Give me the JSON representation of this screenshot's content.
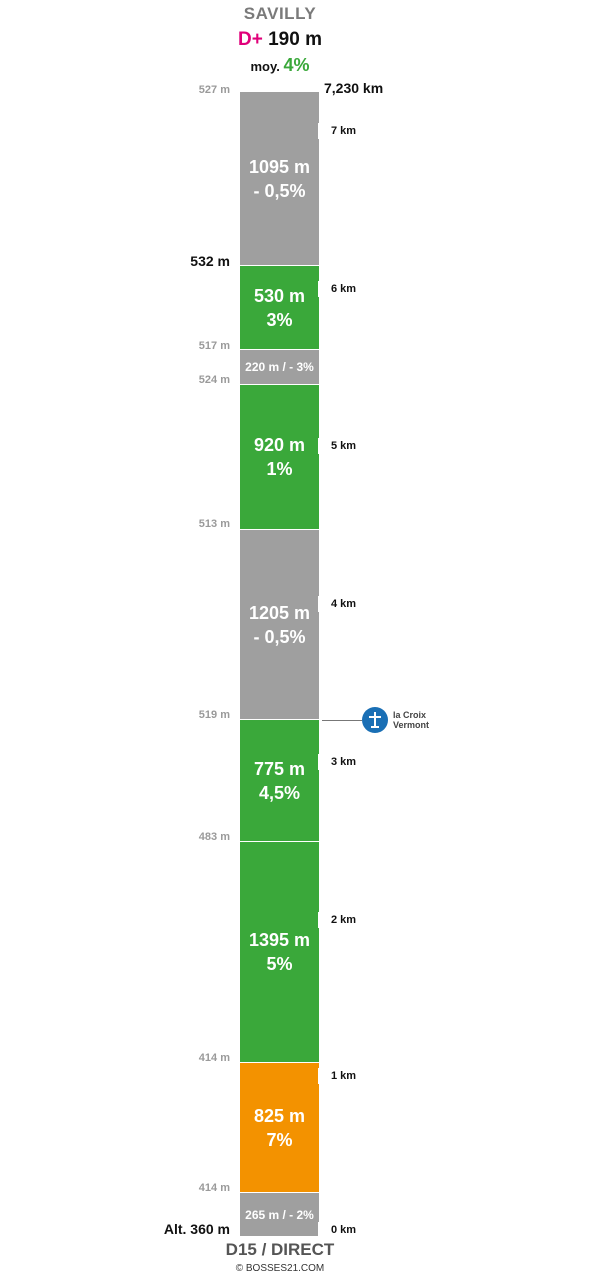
{
  "header": {
    "title": "SAVILLY",
    "dplus_label": "D+",
    "dplus_value": "190 m",
    "moy_label": "moy.",
    "moy_value": "4%"
  },
  "total_distance": "7,230 km",
  "segments": [
    {
      "length": "1095 m",
      "grade": "- 0,5%",
      "color": "#9f9f9f"
    },
    {
      "length": "530 m",
      "grade": "3%",
      "color": "#3aa83a"
    },
    {
      "length": "220 m / - 3%",
      "grade": "",
      "color": "#9f9f9f"
    },
    {
      "length": "920 m",
      "grade": "1%",
      "color": "#3aa83a"
    },
    {
      "length": "1205 m",
      "grade": "- 0,5%",
      "color": "#9f9f9f"
    },
    {
      "length": "775 m",
      "grade": "4,5%",
      "color": "#3aa83a"
    },
    {
      "length": "1395 m",
      "grade": "5%",
      "color": "#3aa83a"
    },
    {
      "length": "825 m",
      "grade": "7%",
      "color": "#f39200"
    },
    {
      "length": "265 m / - 2%",
      "grade": "",
      "color": "#9f9f9f"
    }
  ],
  "altitudes": [
    "527 m",
    "532 m",
    "517 m",
    "524 m",
    "513 m",
    "519 m",
    "483 m",
    "414 m",
    "414 m",
    "Alt. 360 m"
  ],
  "km_markers": [
    "7 km",
    "6 km",
    "5 km",
    "4 km",
    "3 km",
    "2 km",
    "1 km",
    "0 km"
  ],
  "poi": {
    "name": "la Croix Vermont",
    "icon": "cross-icon"
  },
  "footer": {
    "road": "D15 / DIRECT",
    "copyright": "© BOSSES21.COM"
  }
}
